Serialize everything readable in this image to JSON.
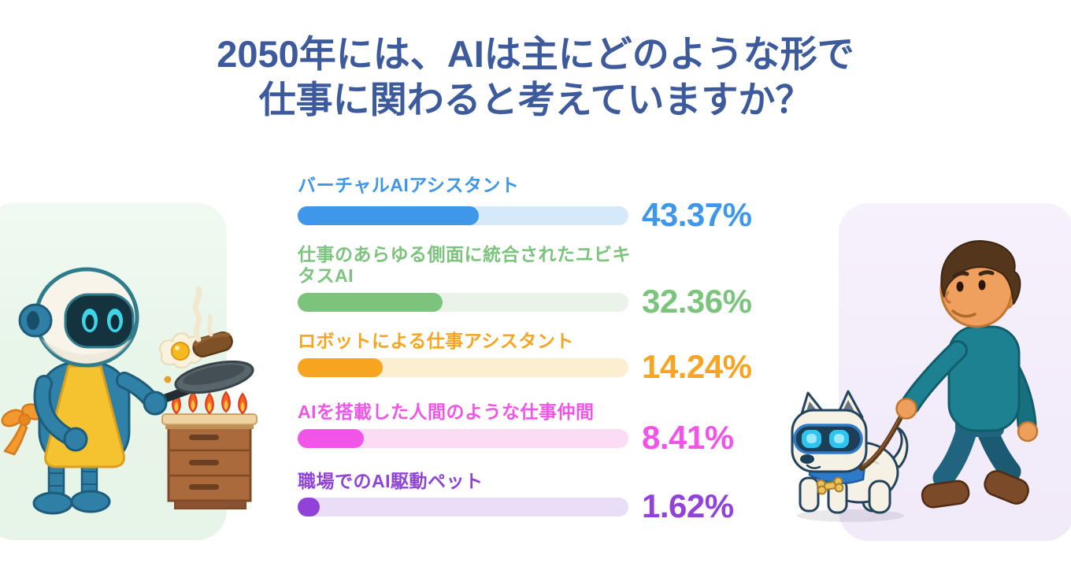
{
  "title": {
    "line1": "2050年には、AIは主にどのような形で",
    "line2": "仕事に関わると考えていますか？",
    "color": "#3C5A9C"
  },
  "chart_data": {
    "type": "bar",
    "orientation": "horizontal",
    "unit": "%",
    "xlim": [
      0,
      100
    ],
    "grid": false,
    "value_label_position": "right",
    "categories": [
      "バーチャルAIアシスタント",
      "仕事のあらゆる側面に統合されたユビキタスAI",
      "ロボットによる仕事アシスタント",
      "AIを搭載した人間のような仕事仲間",
      "職場でのAI駆動ペット"
    ],
    "values": [
      43.37,
      32.36,
      14.24,
      8.41,
      1.62
    ],
    "series": [
      {
        "label": "バーチャルAIアシスタント",
        "value": 43.37,
        "value_label": "43.37%",
        "color": "#3E97E8",
        "track_color": "#D5E9FB"
      },
      {
        "label": "仕事のあらゆる側面に統合されたユビキタスAI",
        "value": 32.36,
        "value_label": "32.36%",
        "color": "#7CC47E",
        "track_color": "#E9F3E8"
      },
      {
        "label": "ロボットによる仕事アシスタント",
        "value": 14.24,
        "value_label": "14.24%",
        "color": "#F7A521",
        "track_color": "#FCEED0"
      },
      {
        "label": "AIを搭載した人間のような仕事仲間",
        "value": 8.41,
        "value_label": "8.41%",
        "color": "#F055E8",
        "track_color": "#FBDCF4"
      },
      {
        "label": "職場でのAI駆動ペット",
        "value": 1.62,
        "value_label": "1.62%",
        "color": "#9143D9",
        "track_color": "#E9DDF8"
      }
    ]
  },
  "illustrations": {
    "left": {
      "name": "robot-cooking-illustration",
      "background": "#E8F5E9"
    },
    "right": {
      "name": "man-walking-robot-dog-illustration",
      "background": "#F3ECFA"
    }
  }
}
